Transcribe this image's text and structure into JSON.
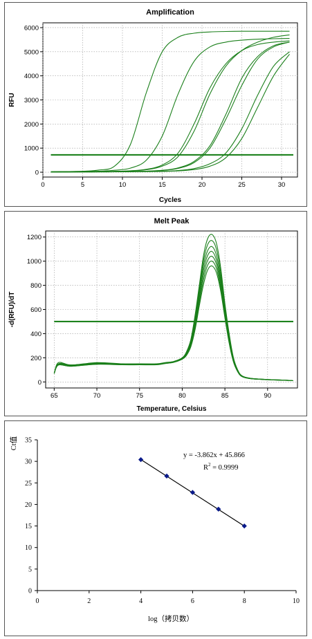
{
  "chart_data": [
    {
      "type": "line",
      "title": "Amplification",
      "xlabel": "Cycles",
      "ylabel": "RFU",
      "xlim": [
        0,
        32
      ],
      "ylim": [
        -200,
        6200
      ],
      "xticks": [
        0,
        5,
        10,
        15,
        20,
        25,
        30
      ],
      "yticks": [
        0,
        1000,
        2000,
        3000,
        4000,
        5000,
        6000
      ],
      "threshold": 720,
      "grid": true,
      "x": [
        1,
        3,
        5,
        7,
        9,
        11,
        13,
        15,
        17,
        19,
        21,
        23,
        25,
        27,
        29,
        31
      ],
      "series": [
        {
          "values": [
            20,
            28,
            42,
            90,
            250,
            1150,
            3300,
            5000,
            5600,
            5770,
            5820,
            5840,
            5850,
            5850,
            5850,
            5850
          ]
        },
        {
          "values": [
            20,
            25,
            30,
            40,
            80,
            170,
            500,
            1500,
            3250,
            4600,
            5200,
            5400,
            5480,
            5520,
            5540,
            5550
          ]
        },
        {
          "values": [
            15,
            18,
            22,
            28,
            35,
            60,
            120,
            300,
            800,
            2000,
            3500,
            4500,
            5050,
            5300,
            5400,
            5450
          ]
        },
        {
          "values": [
            15,
            18,
            22,
            28,
            35,
            55,
            100,
            250,
            650,
            1700,
            3250,
            4400,
            5050,
            5400,
            5600,
            5700
          ]
        },
        {
          "values": [
            10,
            12,
            15,
            18,
            22,
            30,
            45,
            80,
            180,
            450,
            1100,
            2400,
            3900,
            4800,
            5250,
            5400
          ]
        },
        {
          "values": [
            10,
            12,
            15,
            18,
            22,
            30,
            45,
            75,
            160,
            400,
            1000,
            2200,
            3600,
            4700,
            5200,
            5400
          ]
        },
        {
          "values": [
            5,
            8,
            10,
            12,
            15,
            20,
            28,
            40,
            70,
            150,
            350,
            800,
            1800,
            3200,
            4400,
            5000
          ]
        },
        {
          "values": [
            5,
            8,
            10,
            12,
            15,
            20,
            26,
            35,
            55,
            110,
            250,
            600,
            1400,
            2700,
            4000,
            4900
          ]
        }
      ]
    },
    {
      "type": "line",
      "title": "Melt Peak",
      "xlabel": "Temperature, Celsius",
      "ylabel": "-d(RFU)/dT",
      "xlim": [
        64,
        93.5
      ],
      "ylim": [
        -50,
        1250
      ],
      "xticks": [
        65,
        70,
        75,
        80,
        85,
        90
      ],
      "yticks": [
        0,
        200,
        400,
        600,
        800,
        1000,
        1200
      ],
      "threshold": 500,
      "grid": true,
      "x": [
        65,
        65.5,
        67,
        70,
        73,
        75,
        77,
        78,
        79,
        80,
        80.5,
        81,
        81.5,
        82,
        82.5,
        83,
        83.5,
        84,
        84.5,
        85,
        85.5,
        86,
        86.5,
        87,
        88,
        90,
        92,
        93
      ],
      "series": [
        {
          "values": [
            70,
            160,
            140,
            160,
            150,
            150,
            150,
            160,
            170,
            200,
            250,
            350,
            550,
            800,
            1050,
            1190,
            1220,
            1150,
            950,
            650,
            400,
            200,
            100,
            50,
            30,
            20,
            15,
            10
          ]
        },
        {
          "values": [
            70,
            150,
            140,
            155,
            148,
            148,
            148,
            158,
            168,
            198,
            245,
            340,
            530,
            780,
            1010,
            1140,
            1170,
            1100,
            910,
            620,
            380,
            190,
            95,
            50,
            30,
            20,
            15,
            10
          ]
        },
        {
          "values": [
            70,
            150,
            140,
            155,
            148,
            148,
            148,
            158,
            168,
            196,
            240,
            330,
            510,
            750,
            970,
            1090,
            1120,
            1050,
            870,
            600,
            365,
            185,
            92,
            48,
            30,
            20,
            15,
            10
          ]
        },
        {
          "values": [
            70,
            145,
            135,
            150,
            145,
            145,
            145,
            155,
            165,
            194,
            235,
            320,
            490,
            720,
            930,
            1050,
            1080,
            1010,
            840,
            580,
            350,
            180,
            90,
            47,
            28,
            19,
            14,
            10
          ]
        },
        {
          "values": [
            70,
            145,
            135,
            150,
            145,
            145,
            145,
            155,
            165,
            192,
            230,
            310,
            470,
            690,
            890,
            1010,
            1040,
            975,
            810,
            560,
            340,
            175,
            88,
            46,
            28,
            19,
            14,
            10
          ]
        },
        {
          "values": [
            70,
            140,
            130,
            148,
            143,
            143,
            143,
            153,
            163,
            190,
            225,
            300,
            450,
            660,
            850,
            970,
            1000,
            940,
            780,
            545,
            330,
            170,
            86,
            45,
            27,
            18,
            13,
            10
          ]
        },
        {
          "values": [
            70,
            140,
            130,
            146,
            142,
            142,
            142,
            152,
            162,
            188,
            220,
            290,
            430,
            630,
            810,
            930,
            960,
            905,
            755,
            530,
            320,
            165,
            84,
            44,
            27,
            18,
            13,
            10
          ]
        }
      ]
    },
    {
      "type": "scatter",
      "xlabel": "log（拷贝数）",
      "ylabel": "Ct值",
      "xlim": [
        0,
        10
      ],
      "ylim": [
        0,
        35
      ],
      "xticks": [
        0,
        2,
        4,
        6,
        8,
        10
      ],
      "yticks": [
        0,
        5,
        10,
        15,
        20,
        25,
        30,
        35
      ],
      "x": [
        4,
        5,
        6,
        7,
        8
      ],
      "values": [
        30.4,
        26.6,
        22.8,
        18.9,
        15.0
      ],
      "trendline": {
        "slope": -3.862,
        "intercept": 45.866,
        "r2": 0.9999
      },
      "equation": "y = -3.862x + 45.866",
      "r2_label": "R",
      "r2_sup": "2",
      "r2_value": " = 0.9999",
      "grid": false
    }
  ],
  "colors": {
    "curve": "#1a7f1a",
    "threshold": "#1d821d",
    "marker": "#0a1a8a",
    "fit": "#000000"
  }
}
